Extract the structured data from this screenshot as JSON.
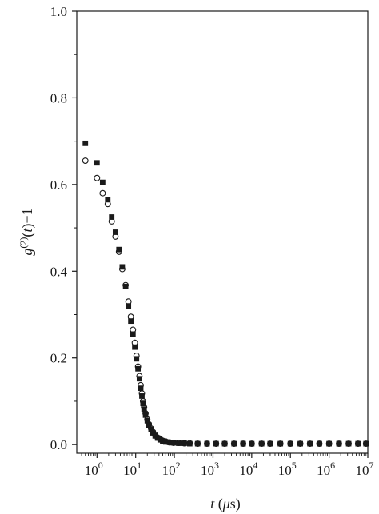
{
  "chart_data": {
    "type": "scatter",
    "title": "",
    "xlabel": "t (μs)",
    "ylabel": "g(2)(t)−1",
    "xscale": "log",
    "xlim": [
      0.3,
      10000000
    ],
    "ylim": [
      -0.02,
      1.0
    ],
    "x_ticks": [
      {
        "value": 1,
        "base": "10",
        "exp": "0"
      },
      {
        "value": 10,
        "base": "10",
        "exp": "1"
      },
      {
        "value": 100,
        "base": "10",
        "exp": "2"
      },
      {
        "value": 1000,
        "base": "10",
        "exp": "3"
      },
      {
        "value": 10000,
        "base": "10",
        "exp": "4"
      },
      {
        "value": 100000,
        "base": "10",
        "exp": "5"
      },
      {
        "value": 1000000,
        "base": "10",
        "exp": "6"
      },
      {
        "value": 10000000,
        "base": "10",
        "exp": "7"
      }
    ],
    "y_ticks": [
      {
        "value": 0.0,
        "label": "0.0"
      },
      {
        "value": 0.2,
        "label": "0.2"
      },
      {
        "value": 0.4,
        "label": "0.4"
      },
      {
        "value": 0.6,
        "label": "0.6"
      },
      {
        "value": 0.8,
        "label": "0.8"
      },
      {
        "value": 1.0,
        "label": "1.0"
      }
    ],
    "grid": false,
    "legend": "none",
    "series": [
      {
        "marker": "filled-square",
        "color": "#1a1a1a",
        "points": [
          [
            0.5,
            0.695
          ],
          [
            1.0,
            0.65
          ],
          [
            1.4,
            0.605
          ],
          [
            1.9,
            0.565
          ],
          [
            2.4,
            0.525
          ],
          [
            3.0,
            0.49
          ],
          [
            3.7,
            0.45
          ],
          [
            4.5,
            0.41
          ],
          [
            5.5,
            0.365
          ],
          [
            6.5,
            0.32
          ],
          [
            7.5,
            0.285
          ],
          [
            8.5,
            0.255
          ],
          [
            9.5,
            0.225
          ],
          [
            10.5,
            0.198
          ],
          [
            11.5,
            0.175
          ],
          [
            12.5,
            0.152
          ],
          [
            13.5,
            0.13
          ],
          [
            14.5,
            0.112
          ],
          [
            15.5,
            0.095
          ],
          [
            16.5,
            0.082
          ],
          [
            18,
            0.068
          ],
          [
            20,
            0.055
          ],
          [
            22,
            0.045
          ],
          [
            25,
            0.035
          ],
          [
            28,
            0.027
          ],
          [
            32,
            0.02
          ],
          [
            37,
            0.015
          ],
          [
            43,
            0.011
          ],
          [
            50,
            0.008
          ],
          [
            60,
            0.006
          ],
          [
            75,
            0.005
          ],
          [
            95,
            0.004
          ],
          [
            130,
            0.003
          ],
          [
            180,
            0.003
          ],
          [
            250,
            0.002
          ],
          [
            400,
            0.002
          ],
          [
            700,
            0.002
          ],
          [
            1200,
            0.002
          ],
          [
            2000,
            0.002
          ],
          [
            3500,
            0.002
          ],
          [
            6000,
            0.002
          ],
          [
            10000,
            0.002
          ],
          [
            18000,
            0.002
          ],
          [
            30000,
            0.002
          ],
          [
            55000,
            0.002
          ],
          [
            100000,
            0.002
          ],
          [
            180000,
            0.002
          ],
          [
            320000,
            0.002
          ],
          [
            560000,
            0.002
          ],
          [
            1000000,
            0.002
          ],
          [
            1800000,
            0.002
          ],
          [
            3200000,
            0.002
          ],
          [
            5600000,
            0.002
          ],
          [
            9000000,
            0.002
          ]
        ]
      },
      {
        "marker": "open-circle",
        "color": "#1a1a1a",
        "points": [
          [
            0.5,
            0.655
          ],
          [
            1.0,
            0.615
          ],
          [
            1.4,
            0.58
          ],
          [
            1.9,
            0.555
          ],
          [
            2.4,
            0.515
          ],
          [
            3.0,
            0.48
          ],
          [
            3.7,
            0.445
          ],
          [
            4.5,
            0.405
          ],
          [
            5.5,
            0.368
          ],
          [
            6.5,
            0.33
          ],
          [
            7.5,
            0.295
          ],
          [
            8.5,
            0.265
          ],
          [
            9.5,
            0.235
          ],
          [
            10.5,
            0.205
          ],
          [
            11.5,
            0.18
          ],
          [
            12.5,
            0.158
          ],
          [
            13.5,
            0.137
          ],
          [
            14.5,
            0.118
          ],
          [
            15.5,
            0.1
          ],
          [
            16.5,
            0.086
          ],
          [
            18,
            0.072
          ],
          [
            20,
            0.058
          ],
          [
            22,
            0.047
          ],
          [
            25,
            0.037
          ],
          [
            28,
            0.029
          ],
          [
            32,
            0.022
          ],
          [
            37,
            0.016
          ],
          [
            43,
            0.012
          ],
          [
            50,
            0.009
          ],
          [
            60,
            0.007
          ],
          [
            75,
            0.005
          ],
          [
            95,
            0.004
          ],
          [
            130,
            0.004
          ],
          [
            180,
            0.003
          ],
          [
            250,
            0.003
          ],
          [
            400,
            0.002
          ],
          [
            700,
            0.002
          ],
          [
            1200,
            0.002
          ],
          [
            2000,
            0.002
          ],
          [
            3500,
            0.002
          ],
          [
            6000,
            0.002
          ],
          [
            10000,
            0.002
          ],
          [
            18000,
            0.002
          ],
          [
            30000,
            0.002
          ],
          [
            55000,
            0.002
          ],
          [
            100000,
            0.002
          ],
          [
            180000,
            0.002
          ],
          [
            320000,
            0.002
          ],
          [
            560000,
            0.002
          ],
          [
            1000000,
            0.002
          ],
          [
            1800000,
            0.002
          ],
          [
            3200000,
            0.002
          ],
          [
            5600000,
            0.002
          ],
          [
            9000000,
            0.002
          ]
        ]
      }
    ]
  }
}
